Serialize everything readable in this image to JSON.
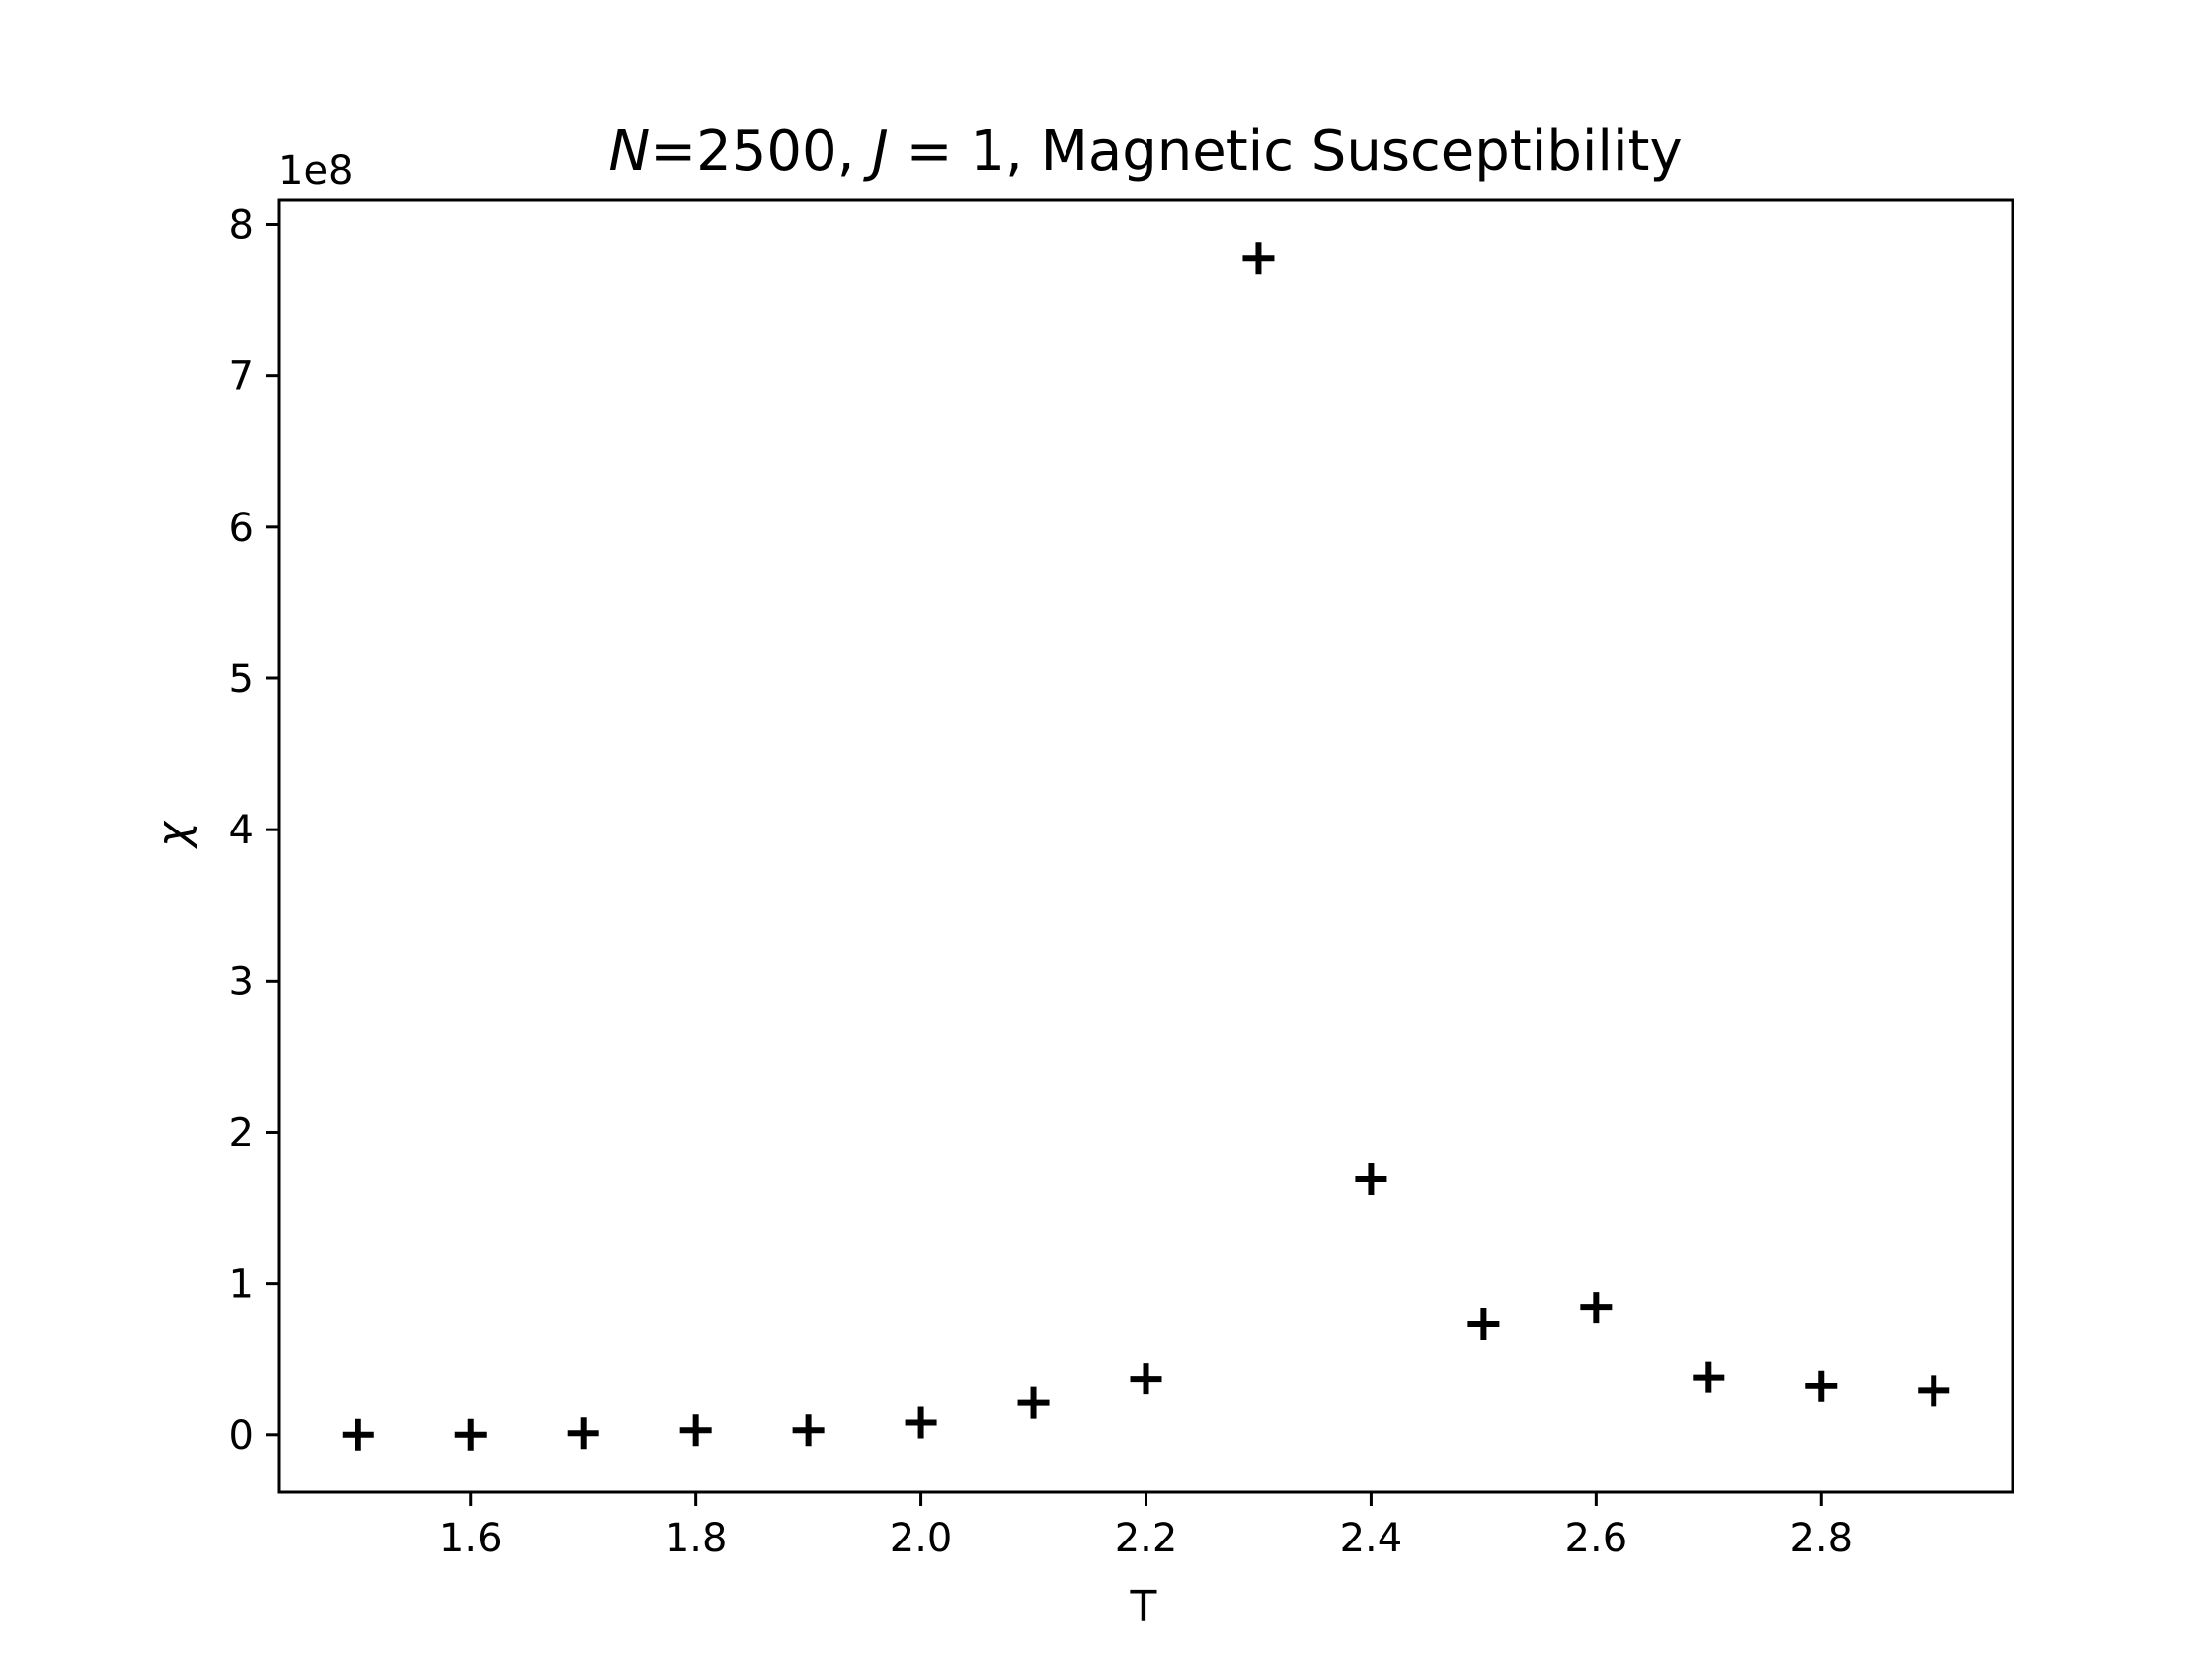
{
  "chart_data": {
    "type": "scatter",
    "title_parts": {
      "n_sym": "N",
      "n_eq": "=2500, ",
      "j_sym": "J",
      "j_eq": " = 1",
      "rest": ", Magnetic Susceptibility"
    },
    "xlabel": "T",
    "ylabel": "χ",
    "y_offset_label": "1e8",
    "y_scale": 100000000,
    "marker": "+",
    "marker_color": "#000000",
    "xlim": [
      1.43,
      2.97
    ],
    "ylim": [
      -0.38,
      8.16
    ],
    "xticks": [
      1.6,
      1.8,
      2.0,
      2.2,
      2.4,
      2.6,
      2.8
    ],
    "xtick_labels": [
      "1.6",
      "1.8",
      "2.0",
      "2.2",
      "2.4",
      "2.6",
      "2.8"
    ],
    "yticks": [
      0,
      1,
      2,
      3,
      4,
      5,
      6,
      7,
      8
    ],
    "ytick_labels": [
      "0",
      "1",
      "2",
      "3",
      "4",
      "5",
      "6",
      "7",
      "8"
    ],
    "grid": false,
    "x": [
      1.5,
      1.6,
      1.7,
      1.8,
      1.9,
      2.0,
      2.1,
      2.2,
      2.3,
      2.4,
      2.5,
      2.6,
      2.7,
      2.8,
      2.9
    ],
    "y": [
      0.0,
      0.0,
      0.01,
      0.03,
      0.03,
      0.08,
      0.21,
      0.37,
      7.78,
      1.69,
      0.73,
      0.84,
      0.38,
      0.32,
      0.29
    ]
  }
}
